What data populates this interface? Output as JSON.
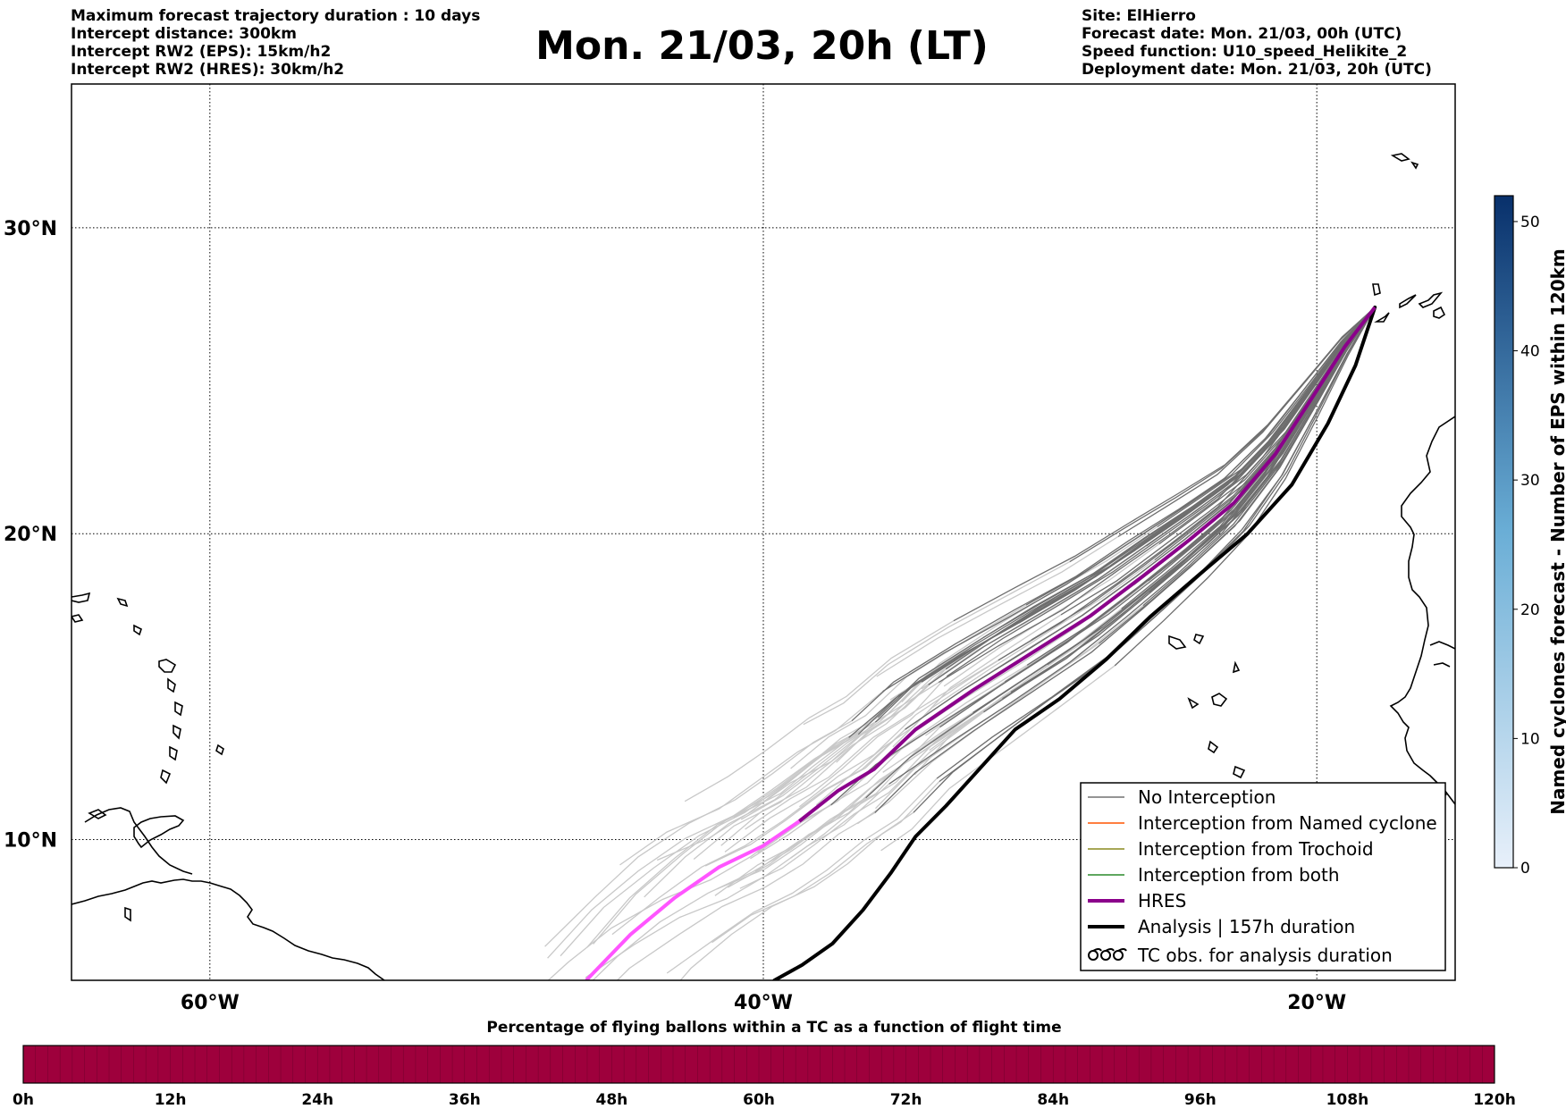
{
  "header": {
    "left_lines": [
      "Maximum forecast trajectory duration : 10 days",
      "Intercept distance: 300km",
      "Intercept RW2 (EPS):  15km/h2",
      "Intercept RW2 (HRES): 30km/h2"
    ],
    "title": "Mon. 21/03, 20h (LT)",
    "right_lines": [
      "Site: ElHierro",
      "Forecast date: Mon. 21/03, 00h (UTC)",
      "Speed function: U10_speed_Helikite_2",
      "Deployment date: Mon. 21/03, 20h (UTC)"
    ]
  },
  "map": {
    "lat_ticks": [
      "30°N",
      "20°N",
      "10°N"
    ],
    "lon_ticks": [
      "60°W",
      "40°W",
      "20°W"
    ],
    "lat_values": [
      30,
      20,
      10
    ],
    "lon_values": [
      -60,
      -40,
      -20
    ],
    "lon_range": [
      -65,
      -15
    ],
    "lat_range": [
      5.4,
      34.7
    ]
  },
  "legend": {
    "items": [
      {
        "label": "No Interception",
        "color": "#707070",
        "width": 1.5,
        "style": "line"
      },
      {
        "label": "Interception from Named cyclone",
        "color": "#ff5500",
        "width": 1.5,
        "style": "line"
      },
      {
        "label": "Interception from Trochoid",
        "color": "#8a8a1e",
        "width": 1.5,
        "style": "line"
      },
      {
        "label": "Interception from both",
        "color": "#2a8a2a",
        "width": 1.5,
        "style": "line"
      },
      {
        "label": "HRES",
        "color": "#8b008b",
        "width": 4,
        "style": "line"
      },
      {
        "label": "Analysis | 157h duration",
        "color": "#000000",
        "width": 4,
        "style": "line"
      },
      {
        "label": "TC obs. for analysis duration",
        "color": "#000000",
        "width": 2,
        "style": "symbol"
      }
    ]
  },
  "colorbar_right": {
    "label": "Named cyclones forecast - Number of EPS within 120km",
    "ticks": [
      "0",
      "10",
      "20",
      "30",
      "40",
      "50"
    ],
    "tick_values": [
      0,
      10,
      20,
      30,
      40,
      50
    ],
    "max": 52,
    "color_low": "#e8f0fa",
    "color_high": "#08306b"
  },
  "colorbar_bottom": {
    "title": "Percentage of flying ballons within a TC as a function of flight time",
    "ticks": [
      "0h",
      "12h",
      "24h",
      "36h",
      "48h",
      "60h",
      "72h",
      "84h",
      "96h",
      "108h",
      "120h"
    ],
    "fill_color": "#9e003c",
    "fraction_filled": 1.0
  },
  "colors": {
    "hres_near": "#8b008b",
    "hres_far": "#ff55ff",
    "eps_near": "#6e6e6e",
    "eps_far": "#c8c8c8",
    "analysis": "#000000"
  }
}
